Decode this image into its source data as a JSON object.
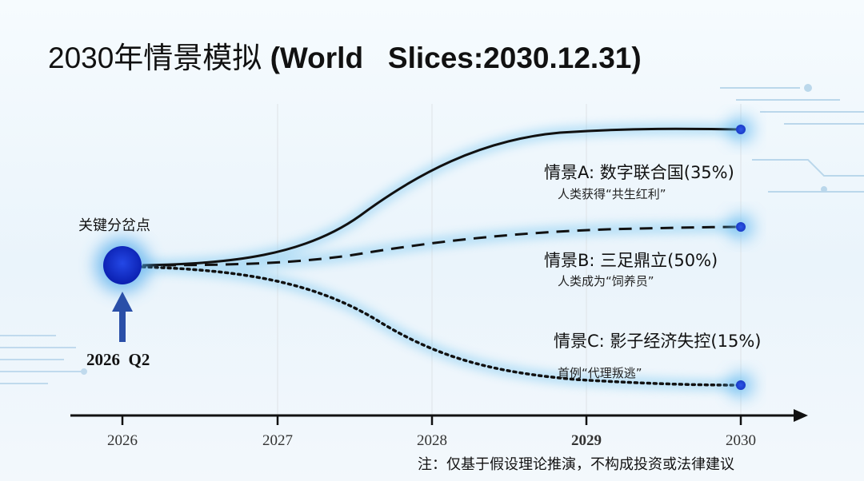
{
  "title": {
    "main": "2030年情景模拟",
    "sub": "(World   Slices:2030.12.31)"
  },
  "decision_point": {
    "label": "关键分岔点",
    "date": "2026  Q2"
  },
  "chart_data": {
    "type": "line",
    "x_axis": {
      "ticks": [
        "2026",
        "2027",
        "2028",
        "2029",
        "2030"
      ]
    },
    "series": [
      {
        "name": "情景A",
        "title": "情景A:  数字联合国",
        "probability": "(35%)",
        "subtitle": "人类获得“共生红利”",
        "style": "solid"
      },
      {
        "name": "情景B",
        "title": "情景B:  三足鼎立",
        "probability": "(50%)",
        "subtitle": "人类成为“饲养员”",
        "style": "dashed"
      },
      {
        "name": "情景C",
        "title": "情景C: 影子经济失控",
        "probability": "(15%)",
        "subtitle": "首例“代理叛逃”",
        "style": "dotted"
      }
    ]
  },
  "footnote": "注：仅基于假设理论推演，不构成投资或法律建议",
  "colors": {
    "accent": "#1133cc",
    "glow": "#6fc3f0",
    "line": "#111111",
    "arrow": "#2a4fa8"
  }
}
